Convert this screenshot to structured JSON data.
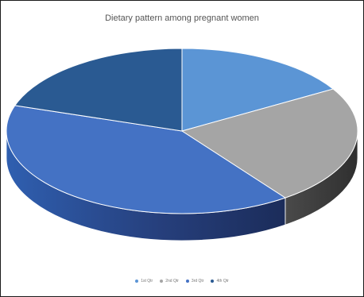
{
  "chart_data": {
    "type": "pie",
    "title": "Dietary pattern among pregnant women",
    "categories": [
      "1st Qtr",
      "2nd Qtr",
      "3rd Qtr",
      "4th Qtr"
    ],
    "values": [
      16.5,
      23.5,
      40,
      20
    ],
    "colors": [
      "#5b95d5",
      "#a5a5a5",
      "#4472c4",
      "#2a5a92"
    ],
    "side_colors": [
      "#3f6fa3",
      "#474747",
      "#243f78",
      "#1a3a66"
    ],
    "legend_position": "bottom",
    "three_d": true
  }
}
